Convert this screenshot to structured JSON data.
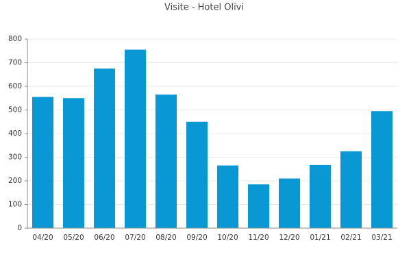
{
  "chart_data": {
    "type": "bar",
    "title": "Visite - Hotel Olivi",
    "categories": [
      "04/20",
      "05/20",
      "06/20",
      "07/20",
      "08/20",
      "09/20",
      "10/20",
      "11/20",
      "12/20",
      "01/21",
      "02/21",
      "03/21"
    ],
    "values": [
      555,
      550,
      675,
      755,
      565,
      450,
      265,
      185,
      210,
      267,
      325,
      495
    ],
    "color": "#0a98d5",
    "ylim": [
      0,
      800
    ],
    "yticks": [
      0,
      100,
      200,
      300,
      400,
      500,
      600,
      700,
      800
    ],
    "grid": true
  }
}
